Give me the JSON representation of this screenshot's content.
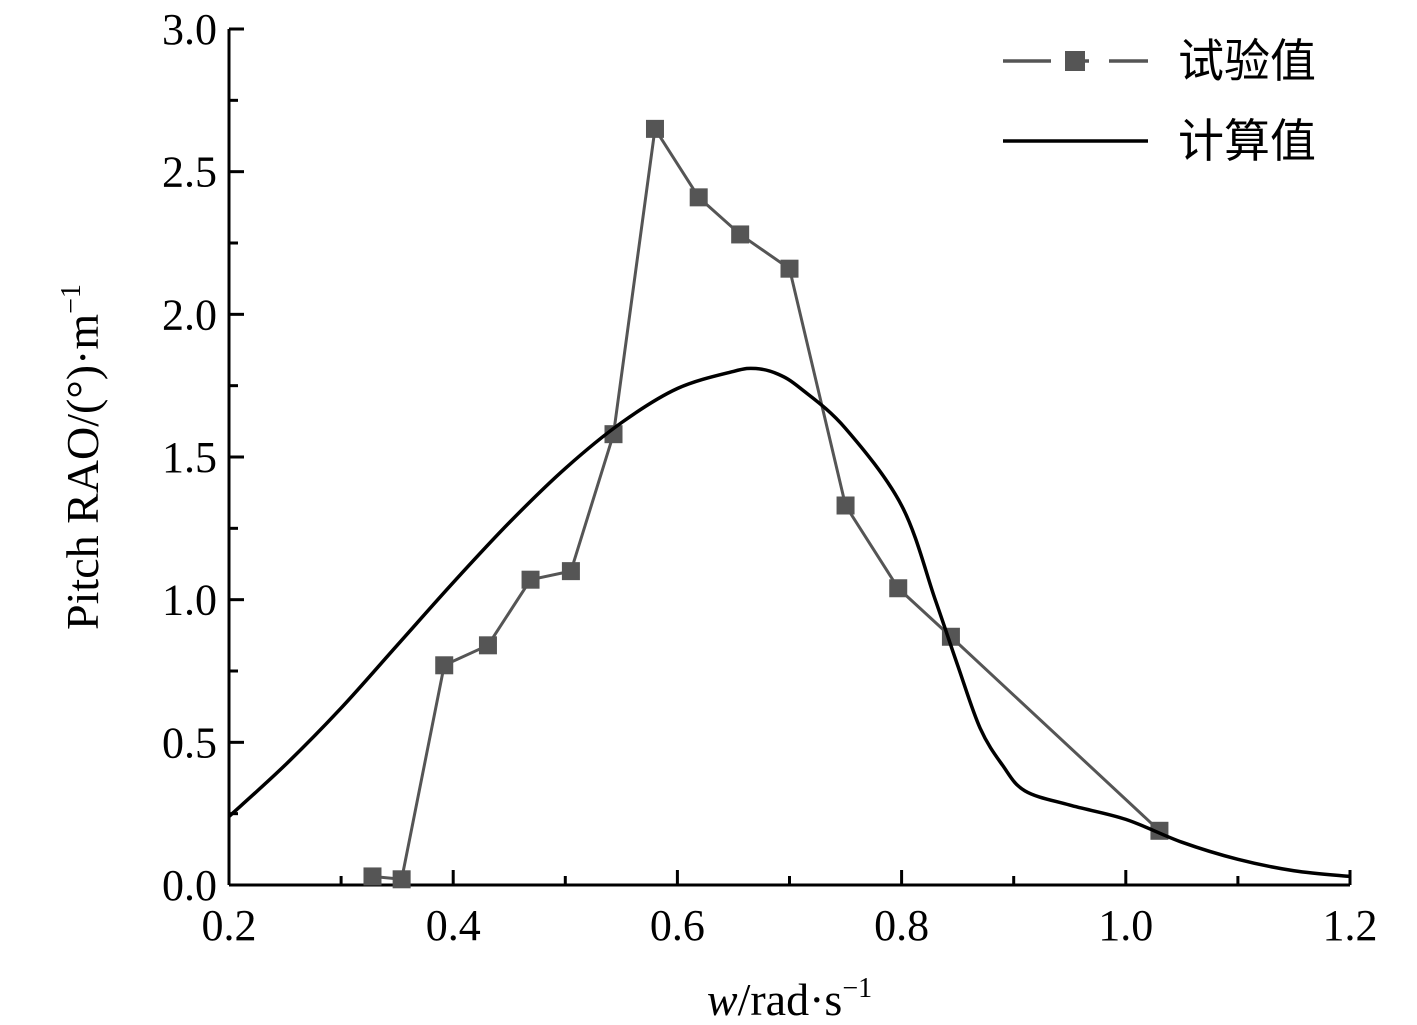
{
  "chart_data": {
    "type": "line",
    "xlabel": {
      "main": "w",
      "rest": "/rad·s",
      "sup": "−1"
    },
    "ylabel": {
      "main": "Pitch RAO/(°)·m",
      "sup": "−1"
    },
    "xlim": [
      0.2,
      1.2
    ],
    "ylim": [
      0.0,
      3.0
    ],
    "x_ticks": [
      "0.2",
      "0.4",
      "0.6",
      "0.8",
      "1.0",
      "1.2"
    ],
    "y_ticks": [
      "0.0",
      "0.5",
      "1.0",
      "1.5",
      "2.0",
      "2.5",
      "3.0"
    ],
    "grid": false,
    "legend_position": "top-right",
    "series": [
      {
        "name": "试验值",
        "style": "line-square-marker",
        "color": "#555555",
        "x": [
          0.328,
          0.354,
          0.392,
          0.431,
          0.469,
          0.505,
          0.543,
          0.58,
          0.619,
          0.656,
          0.7,
          0.75,
          0.797,
          0.844,
          1.03
        ],
        "y": [
          0.03,
          0.02,
          0.77,
          0.84,
          1.07,
          1.1,
          1.58,
          2.65,
          2.41,
          2.28,
          2.16,
          1.33,
          1.04,
          0.87,
          0.19
        ]
      },
      {
        "name": "计算值",
        "style": "line",
        "color": "#000000",
        "x": [
          0.2,
          0.25,
          0.3,
          0.35,
          0.4,
          0.45,
          0.5,
          0.55,
          0.6,
          0.65,
          0.67,
          0.69,
          0.71,
          0.75,
          0.8,
          0.83,
          0.85,
          0.87,
          0.89,
          0.91,
          0.95,
          1.0,
          1.05,
          1.1,
          1.15,
          1.2
        ],
        "y": [
          0.24,
          0.42,
          0.62,
          0.84,
          1.06,
          1.27,
          1.46,
          1.62,
          1.74,
          1.8,
          1.81,
          1.79,
          1.74,
          1.6,
          1.33,
          1.0,
          0.77,
          0.55,
          0.42,
          0.33,
          0.28,
          0.23,
          0.15,
          0.09,
          0.05,
          0.03
        ]
      }
    ]
  }
}
